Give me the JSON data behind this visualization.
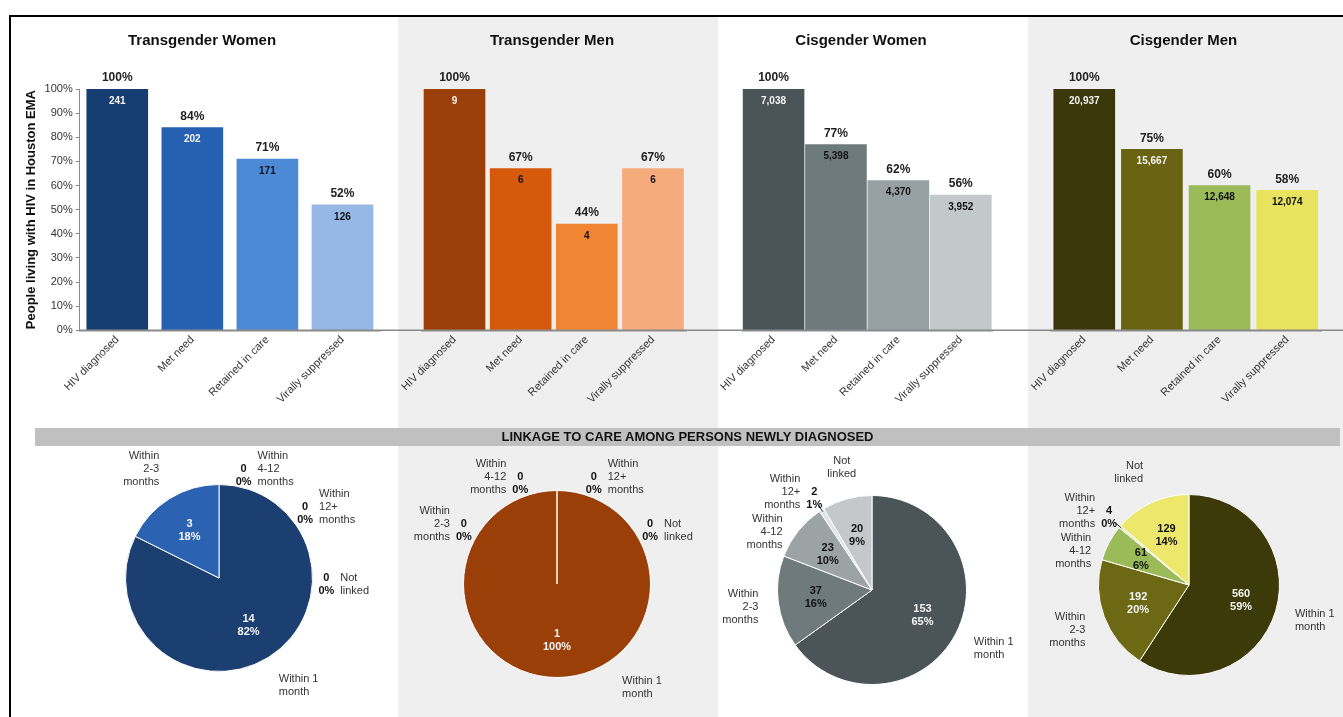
{
  "chart_data": [
    {
      "type": "bar",
      "title": "Transgender Women",
      "ylabel": "People living with HIV in Houston EMA",
      "categories": [
        "HIV diagnosed",
        "Met need",
        "Retained in care",
        "Virally suppressed"
      ],
      "values": [
        100,
        84,
        71,
        52
      ],
      "colors": [
        "#173e72",
        "#2660b2",
        "#4d8ad6",
        "#95b8e6"
      ],
      "value_labels": [
        "100%",
        "84%",
        "71%",
        "52%"
      ],
      "annotations": [
        {
          "text": "241",
          "x": "HIV diagnosed",
          "y": 100
        },
        {
          "text": "202",
          "x": "Met need",
          "y": 84
        },
        {
          "text": "171",
          "x": "Retained in care",
          "y": 71
        },
        {
          "text": "126",
          "x": "Virally suppressed",
          "y": 52
        }
      ],
      "ylim": [
        0,
        100
      ],
      "yticks": [
        {
          "value": 0,
          "label": "0%"
        },
        {
          "value": 10,
          "label": "10%"
        },
        {
          "value": 20,
          "label": "20%"
        },
        {
          "value": 30,
          "label": "30%"
        },
        {
          "value": 40,
          "label": "40%"
        },
        {
          "value": 50,
          "label": "50%"
        },
        {
          "value": 60,
          "label": "60%"
        },
        {
          "value": 70,
          "label": "70%"
        },
        {
          "value": 80,
          "label": "80%"
        },
        {
          "value": 90,
          "label": "90%"
        },
        {
          "value": 100,
          "label": "100%"
        }
      ]
    },
    {
      "type": "bar",
      "title": "Transgender Men",
      "categories": [
        "HIV diagnosed",
        "Met need",
        "Retained in care",
        "Virally suppressed"
      ],
      "values": [
        100,
        67,
        44,
        67
      ],
      "colors": [
        "#9c3e07",
        "#d75a0c",
        "#f08534",
        "#f5ab7c"
      ],
      "value_labels": [
        "100%",
        "67%",
        "44%",
        "67%"
      ],
      "annotations": [
        {
          "text": "9",
          "x": "HIV diagnosed",
          "y": 100
        },
        {
          "text": "6",
          "x": "Met need",
          "y": 67
        },
        {
          "text": "4",
          "x": "Retained in care",
          "y": 44
        },
        {
          "text": "6",
          "x": "Virally suppressed",
          "y": 67
        }
      ],
      "ylim": [
        0,
        100
      ],
      "tick_labels": "x"
    },
    {
      "type": "bar",
      "title": "Cisgender Women",
      "categories": [
        "HIV diagnosed",
        "Met need",
        "Retained in care",
        "Virally suppressed"
      ],
      "values": [
        100,
        77,
        62,
        56
      ],
      "colors": [
        "#4a5356",
        "#6e7b7d",
        "#97a1a3",
        "#c3c8ca"
      ],
      "value_labels": [
        "100%",
        "77%",
        "62%",
        "56%"
      ],
      "annotations": [
        {
          "text": "7,038",
          "x": "HIV diagnosed",
          "y": 100
        },
        {
          "text": "5,398",
          "x": "Met need",
          "y": 77
        },
        {
          "text": "4,370",
          "x": "Retained in care",
          "y": 62
        },
        {
          "text": "3,952",
          "x": "Virally suppressed",
          "y": 56
        }
      ],
      "ylim": [
        0,
        100
      ],
      "tick_labels": "x"
    },
    {
      "type": "bar",
      "title": "Cisgender Men",
      "categories": [
        "HIV diagnosed",
        "Met need",
        "Retained in care",
        "Virally suppressed"
      ],
      "values": [
        100,
        75,
        60,
        58
      ],
      "colors": [
        "#3a380a",
        "#6a6412",
        "#9bbb59",
        "#e8e35e"
      ],
      "value_labels": [
        "100%",
        "75%",
        "60%",
        "58%"
      ],
      "annotations": [
        {
          "text": "20,937",
          "x": "HIV diagnosed",
          "y": 100
        },
        {
          "text": "15,667",
          "x": "Met need",
          "y": 75
        },
        {
          "text": "12,648",
          "x": "Retained in care",
          "y": 60
        },
        {
          "text": "12,074",
          "x": "Virally suppressed",
          "y": 58
        }
      ],
      "ylim": [
        0,
        100
      ],
      "tick_labels": "x"
    },
    {
      "type": "other",
      "title": "LINKAGE TO CARE AMONG PERSONS NEWLY DIAGNOSED"
    },
    {
      "type": "pie",
      "categories": [
        "Within 1 month",
        "Within 2-3 months",
        "Within 4-12 months",
        "Within 12+ months",
        "Not linked"
      ],
      "values": [
        14,
        3,
        0,
        0,
        0
      ],
      "colors": [
        "#1c3f72",
        "#2b62b1",
        "#4d8ad6",
        "#95b8e6",
        "#c5d8f0"
      ],
      "value_labels": [
        "14",
        "3",
        "0",
        "0",
        "0"
      ],
      "annotations": [
        {
          "text": "82%",
          "x": "Within 1 month"
        },
        {
          "text": "18%",
          "x": "Within 2-3 months"
        },
        {
          "text": "0%",
          "x": "Within 4-12 months"
        },
        {
          "text": "0%",
          "x": "Within 12+ months"
        },
        {
          "text": "0%",
          "x": "Not linked"
        }
      ]
    },
    {
      "type": "pie",
      "categories": [
        "Within 1 month",
        "Within 2-3 months",
        "Within 4-12 months",
        "Within 12+ months",
        "Not linked"
      ],
      "values": [
        1,
        0,
        0,
        0,
        0
      ],
      "colors": [
        "#9b3f08",
        "#d75a0c",
        "#f08534",
        "#f5ab7c",
        "#f9d0b4"
      ],
      "value_labels": [
        "1",
        "0",
        "0",
        "0",
        "0"
      ],
      "annotations": [
        {
          "text": "100%",
          "x": "Within 1 month"
        },
        {
          "text": "0%",
          "x": "Within 2-3 months"
        },
        {
          "text": "0%",
          "x": "Within 4-12 months"
        },
        {
          "text": "0%",
          "x": "Within 12+ months"
        },
        {
          "text": "0%",
          "x": "Not linked"
        }
      ]
    },
    {
      "type": "pie",
      "categories": [
        "Within 1 month",
        "Within 2-3 months",
        "Within 4-12 months",
        "Within 12+ months",
        "Not linked"
      ],
      "values": [
        153,
        37,
        23,
        2,
        20
      ],
      "colors": [
        "#4b5558",
        "#6e7a7c",
        "#9ba3a5",
        "#e1e4e5",
        "#c4c8ca"
      ],
      "value_labels": [
        "153",
        "37",
        "23",
        "2",
        "20"
      ],
      "annotations": [
        {
          "text": "65%",
          "x": "Within 1 month"
        },
        {
          "text": "16%",
          "x": "Within 2-3 months"
        },
        {
          "text": "10%",
          "x": "Within 4-12 months"
        },
        {
          "text": "1%",
          "x": "Within 12+ months"
        },
        {
          "text": "9%",
          "x": "Not linked"
        }
      ]
    },
    {
      "type": "pie",
      "categories": [
        "Within 1 month",
        "Within 2-3 months",
        "Within 4-12 months",
        "Within 12+ months",
        "Not linked"
      ],
      "values": [
        560,
        192,
        61,
        4,
        129
      ],
      "colors": [
        "#3c3a08",
        "#6d6813",
        "#9bbb59",
        "#dfe8c6",
        "#ede86c"
      ],
      "value_labels": [
        "560",
        "192",
        "61",
        "4",
        "129"
      ],
      "annotations": [
        {
          "text": "59%",
          "x": "Within 1 month"
        },
        {
          "text": "20%",
          "x": "Within 2-3 months"
        },
        {
          "text": "6%",
          "x": "Within 4-12 months"
        },
        {
          "text": "0%",
          "x": "Within 12+ months"
        },
        {
          "text": "14%",
          "x": "Not linked"
        }
      ]
    }
  ]
}
